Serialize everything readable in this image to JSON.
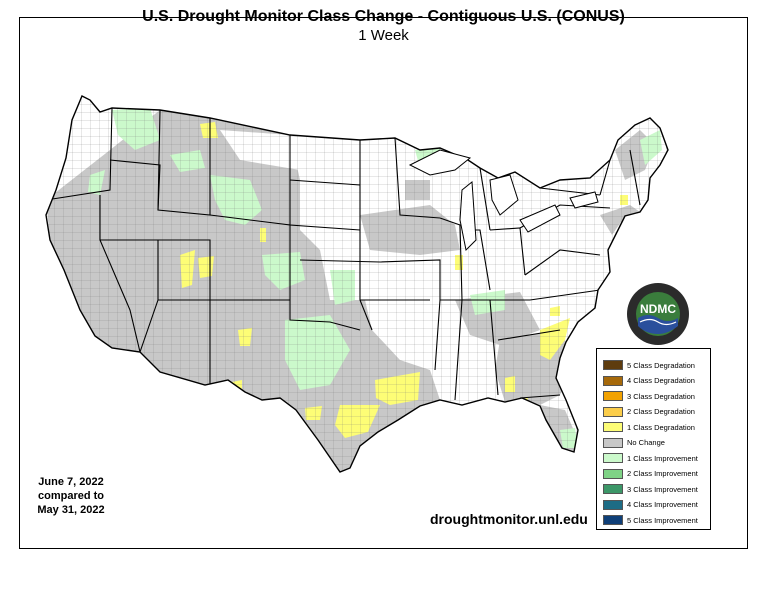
{
  "header": {
    "title": "U.S. Drought Monitor Class Change - Contiguous U.S. (CONUS)",
    "subtitle": "1 Week"
  },
  "dates": {
    "line1": "June 7, 2022",
    "line2": "compared to",
    "line3": "May 31, 2022"
  },
  "footer": {
    "url": "droughtmonitor.unl.edu"
  },
  "logo": {
    "text": "NDMC",
    "ring_text": "NATIONAL DROUGHT MITIGATION CENTER · UNIVERSITY OF NEBRASKA"
  },
  "legend": {
    "items": [
      {
        "label": "5 Class Degradation",
        "color": "#5e3c0e"
      },
      {
        "label": "4 Class Degradation",
        "color": "#a6690a"
      },
      {
        "label": "3 Class Degradation",
        "color": "#f2a201"
      },
      {
        "label": "2 Class Degradation",
        "color": "#fbcd4a"
      },
      {
        "label": "1 Class Degradation",
        "color": "#fdfd76"
      },
      {
        "label": "No Change",
        "color": "#c8c8c8"
      },
      {
        "label": "1 Class Improvement",
        "color": "#cbf9cb"
      },
      {
        "label": "2 Class Improvement",
        "color": "#7fd386"
      },
      {
        "label": "3 Class Improvement",
        "color": "#3c9768"
      },
      {
        "label": "4 Class Improvement",
        "color": "#1d6c85"
      },
      {
        "label": "5 Class Improvement",
        "color": "#0f3f78"
      }
    ]
  },
  "map_colors": {
    "no_change": "#c8c8c8",
    "degradation_1": "#fdfd76",
    "improvement_1": "#cbf9cb",
    "improvement_2": "#7fd386",
    "background": "#ffffff",
    "border": "#000000"
  }
}
